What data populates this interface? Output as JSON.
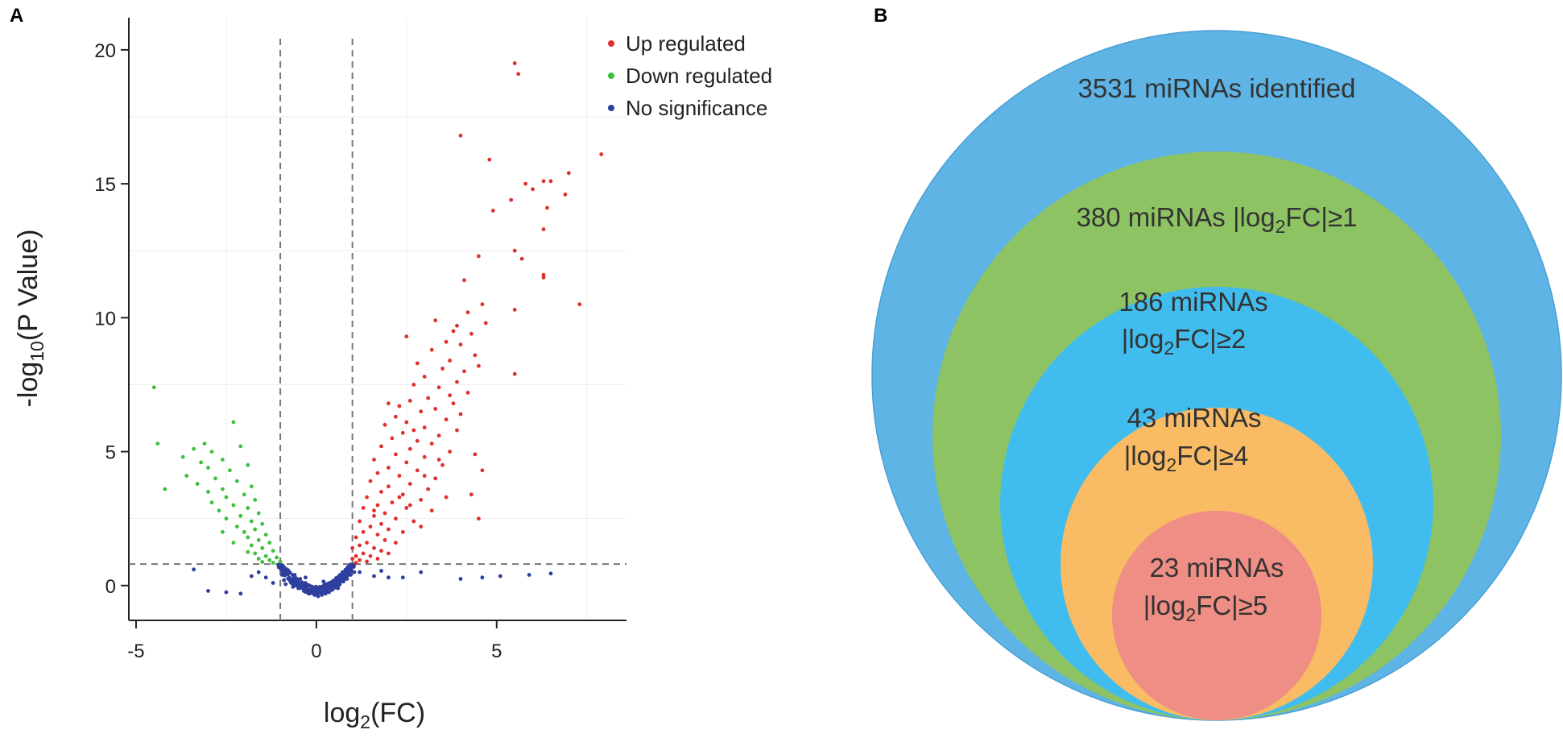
{
  "panel_a": {
    "letter": "A",
    "colors": {
      "up": "#e0302c",
      "down": "#3fbf3f",
      "none": "#2e3f9e",
      "threshold": "#777777"
    }
  },
  "panel_b": {
    "letter": "B",
    "circles": [
      {
        "line1": "3531 miRNAs identified",
        "line2_pre": "",
        "line2_sub": "",
        "line2_post": "",
        "color": "#5db4e5"
      },
      {
        "line1": "380 miRNAs |log",
        "line1_sub": "2",
        "line1_post": "FC|≥1",
        "color": "#8ec364"
      },
      {
        "line1": "186 miRNAs",
        "line2_pre": "|log",
        "line2_sub": "2",
        "line2_post": "FC|≥2",
        "color": "#40bdee"
      },
      {
        "line1": "43 miRNAs",
        "line2_pre": "|log",
        "line2_sub": "2",
        "line2_post": "FC|≥4",
        "color": "#f9bb64"
      },
      {
        "line1": "23 miRNAs",
        "line2_pre": "|log",
        "line2_sub": "2",
        "line2_post": "FC|≥5",
        "color": "#ee8e84"
      }
    ],
    "outline_color": "#4a9fd3"
  },
  "chart_data": {
    "type": "scatter",
    "title": "",
    "xlabel_pre": "log",
    "xlabel_sub": "2",
    "xlabel_post": "(FC)",
    "ylabel_pre": "-log",
    "ylabel_sub": "10",
    "ylabel_post": "(P Value)",
    "xlim": [
      -5.2,
      8.6
    ],
    "ylim": [
      -1.3,
      21.2
    ],
    "xticks": [
      -5,
      0,
      5
    ],
    "yticks": [
      0,
      5,
      10,
      15,
      20
    ],
    "thresholds": {
      "x": [
        -1,
        1
      ],
      "y": 0.8
    },
    "legend": [
      {
        "key": "up",
        "label": "Up regulated"
      },
      {
        "key": "down",
        "label": "Down regulated"
      },
      {
        "key": "none",
        "label": "No significance"
      }
    ],
    "legend_position": "top-right",
    "series": [
      {
        "name": "Up regulated",
        "key": "up",
        "points": [
          [
            5.5,
            19.5
          ],
          [
            5.6,
            19.1
          ],
          [
            4.0,
            16.8
          ],
          [
            7.9,
            16.1
          ],
          [
            4.8,
            15.9
          ],
          [
            7.0,
            15.4
          ],
          [
            6.5,
            15.1
          ],
          [
            6.3,
            15.1
          ],
          [
            5.8,
            15.0
          ],
          [
            6.0,
            14.8
          ],
          [
            6.9,
            14.6
          ],
          [
            5.4,
            14.4
          ],
          [
            6.4,
            14.1
          ],
          [
            4.9,
            14.0
          ],
          [
            6.3,
            13.3
          ],
          [
            5.5,
            12.5
          ],
          [
            4.5,
            12.3
          ],
          [
            5.7,
            12.2
          ],
          [
            6.3,
            11.6
          ],
          [
            6.3,
            11.5
          ],
          [
            4.1,
            11.4
          ],
          [
            7.3,
            10.5
          ],
          [
            4.6,
            10.5
          ],
          [
            5.5,
            10.3
          ],
          [
            4.2,
            10.2
          ],
          [
            3.3,
            9.9
          ],
          [
            4.7,
            9.8
          ],
          [
            3.9,
            9.7
          ],
          [
            3.8,
            9.5
          ],
          [
            4.3,
            9.4
          ],
          [
            2.5,
            9.3
          ],
          [
            3.6,
            9.1
          ],
          [
            4.0,
            9.0
          ],
          [
            3.2,
            8.8
          ],
          [
            4.4,
            8.6
          ],
          [
            3.7,
            8.4
          ],
          [
            2.8,
            8.3
          ],
          [
            3.5,
            8.1
          ],
          [
            5.5,
            7.9
          ],
          [
            4.1,
            8.0
          ],
          [
            3.0,
            7.8
          ],
          [
            3.9,
            7.6
          ],
          [
            2.7,
            7.5
          ],
          [
            3.4,
            7.4
          ],
          [
            4.2,
            7.2
          ],
          [
            3.1,
            7.0
          ],
          [
            2.6,
            6.9
          ],
          [
            3.8,
            6.8
          ],
          [
            2.0,
            6.8
          ],
          [
            2.3,
            6.7
          ],
          [
            3.3,
            6.6
          ],
          [
            2.9,
            6.5
          ],
          [
            4.0,
            6.4
          ],
          [
            2.2,
            6.3
          ],
          [
            3.6,
            6.2
          ],
          [
            2.5,
            6.1
          ],
          [
            1.9,
            6.0
          ],
          [
            3.0,
            5.9
          ],
          [
            3.9,
            5.8
          ],
          [
            2.4,
            5.7
          ],
          [
            3.4,
            5.6
          ],
          [
            2.1,
            5.5
          ],
          [
            2.8,
            5.4
          ],
          [
            3.2,
            5.3
          ],
          [
            1.8,
            5.2
          ],
          [
            2.6,
            5.1
          ],
          [
            3.7,
            5.0
          ],
          [
            2.2,
            4.9
          ],
          [
            4.4,
            4.9
          ],
          [
            3.0,
            4.8
          ],
          [
            1.6,
            4.7
          ],
          [
            2.5,
            4.6
          ],
          [
            3.5,
            4.5
          ],
          [
            2.0,
            4.4
          ],
          [
            2.8,
            4.3
          ],
          [
            4.6,
            4.3
          ],
          [
            1.7,
            4.2
          ],
          [
            2.3,
            4.1
          ],
          [
            3.3,
            4.0
          ],
          [
            1.5,
            3.9
          ],
          [
            2.6,
            3.8
          ],
          [
            2.0,
            3.7
          ],
          [
            3.1,
            3.6
          ],
          [
            1.8,
            3.5
          ],
          [
            2.4,
            3.4
          ],
          [
            4.3,
            3.4
          ],
          [
            1.4,
            3.3
          ],
          [
            2.9,
            3.2
          ],
          [
            2.1,
            3.1
          ],
          [
            1.7,
            3.0
          ],
          [
            2.5,
            2.9
          ],
          [
            1.3,
            2.9
          ],
          [
            3.2,
            2.8
          ],
          [
            1.9,
            2.7
          ],
          [
            1.6,
            2.6
          ],
          [
            2.2,
            2.5
          ],
          [
            4.5,
            2.5
          ],
          [
            1.2,
            2.4
          ],
          [
            2.7,
            2.4
          ],
          [
            1.8,
            2.3
          ],
          [
            1.5,
            2.2
          ],
          [
            2.0,
            2.1
          ],
          [
            1.3,
            2.0
          ],
          [
            2.4,
            2.0
          ],
          [
            1.7,
            1.9
          ],
          [
            1.1,
            1.8
          ],
          [
            1.9,
            1.7
          ],
          [
            1.4,
            1.6
          ],
          [
            2.2,
            1.6
          ],
          [
            1.2,
            1.5
          ],
          [
            1.6,
            1.4
          ],
          [
            1.0,
            1.4
          ],
          [
            1.8,
            1.3
          ],
          [
            1.3,
            1.2
          ],
          [
            1.1,
            1.1
          ],
          [
            1.5,
            1.1
          ],
          [
            1.0,
            1.0
          ],
          [
            1.2,
            0.95
          ],
          [
            1.4,
            0.9
          ],
          [
            1.7,
            1.0
          ],
          [
            1.1,
            0.85
          ],
          [
            2.0,
            1.2
          ],
          [
            2.6,
            3.0
          ],
          [
            3.6,
            3.3
          ],
          [
            2.9,
            2.2
          ],
          [
            1.6,
            2.8
          ],
          [
            2.3,
            3.3
          ],
          [
            3.0,
            4.1
          ],
          [
            3.4,
            4.7
          ],
          [
            2.7,
            5.8
          ],
          [
            3.7,
            7.1
          ],
          [
            4.5,
            8.2
          ]
        ]
      },
      {
        "name": "Down regulated",
        "key": "down",
        "points": [
          [
            -4.5,
            7.4
          ],
          [
            -2.3,
            6.1
          ],
          [
            -4.4,
            5.3
          ],
          [
            -3.1,
            5.3
          ],
          [
            -2.1,
            5.2
          ],
          [
            -3.4,
            5.1
          ],
          [
            -2.9,
            5.0
          ],
          [
            -3.7,
            4.8
          ],
          [
            -2.6,
            4.7
          ],
          [
            -3.2,
            4.6
          ],
          [
            -1.9,
            4.5
          ],
          [
            -3.0,
            4.4
          ],
          [
            -2.4,
            4.3
          ],
          [
            -3.6,
            4.1
          ],
          [
            -2.8,
            4.0
          ],
          [
            -2.2,
            3.9
          ],
          [
            -3.3,
            3.8
          ],
          [
            -1.8,
            3.7
          ],
          [
            -4.2,
            3.6
          ],
          [
            -2.6,
            3.6
          ],
          [
            -3.0,
            3.5
          ],
          [
            -2.0,
            3.4
          ],
          [
            -2.5,
            3.3
          ],
          [
            -1.7,
            3.2
          ],
          [
            -2.9,
            3.1
          ],
          [
            -2.3,
            3.0
          ],
          [
            -1.9,
            2.9
          ],
          [
            -2.7,
            2.8
          ],
          [
            -1.6,
            2.7
          ],
          [
            -2.1,
            2.6
          ],
          [
            -2.5,
            2.5
          ],
          [
            -1.8,
            2.4
          ],
          [
            -1.5,
            2.3
          ],
          [
            -2.2,
            2.2
          ],
          [
            -1.7,
            2.1
          ],
          [
            -2.0,
            2.0
          ],
          [
            -1.4,
            1.9
          ],
          [
            -1.9,
            1.8
          ],
          [
            -1.6,
            1.7
          ],
          [
            -1.3,
            1.6
          ],
          [
            -1.8,
            1.5
          ],
          [
            -1.5,
            1.4
          ],
          [
            -1.2,
            1.3
          ],
          [
            -1.7,
            1.2
          ],
          [
            -1.4,
            1.1
          ],
          [
            -1.1,
            1.05
          ],
          [
            -1.6,
            1.0
          ],
          [
            -1.3,
            0.95
          ],
          [
            -1.0,
            0.9
          ],
          [
            -1.5,
            0.88
          ],
          [
            -1.2,
            0.85
          ],
          [
            -1.9,
            1.25
          ],
          [
            -2.3,
            1.6
          ],
          [
            -2.6,
            2.0
          ]
        ]
      },
      {
        "name": "No significance",
        "key": "none",
        "points": [
          [
            -3.4,
            0.6
          ],
          [
            -3.0,
            -0.2
          ],
          [
            -2.5,
            -0.25
          ],
          [
            -2.1,
            -0.3
          ],
          [
            -1.8,
            0.35
          ],
          [
            -1.6,
            0.5
          ],
          [
            -1.4,
            0.3
          ],
          [
            -1.2,
            0.1
          ],
          [
            -1.0,
            0.65
          ],
          [
            -0.95,
            0.4
          ],
          [
            -0.9,
            0.2
          ],
          [
            -0.85,
            0.05
          ],
          [
            -0.8,
            0.55
          ],
          [
            -0.75,
            0.3
          ],
          [
            -0.7,
            0.1
          ],
          [
            -0.65,
            -0.05
          ],
          [
            -0.6,
            0.4
          ],
          [
            -0.55,
            0.15
          ],
          [
            -0.5,
            -0.1
          ],
          [
            -0.45,
            0.25
          ],
          [
            -0.4,
            0.0
          ],
          [
            -0.35,
            -0.2
          ],
          [
            -0.3,
            0.1
          ],
          [
            -0.25,
            -0.15
          ],
          [
            -0.2,
            -0.3
          ],
          [
            -0.15,
            -0.05
          ],
          [
            -0.1,
            -0.25
          ],
          [
            -0.05,
            -0.35
          ],
          [
            0.0,
            -0.3
          ],
          [
            0.05,
            -0.4
          ],
          [
            0.1,
            -0.25
          ],
          [
            0.15,
            -0.35
          ],
          [
            0.2,
            -0.2
          ],
          [
            0.25,
            -0.3
          ],
          [
            0.3,
            -0.1
          ],
          [
            0.35,
            -0.25
          ],
          [
            0.4,
            0.0
          ],
          [
            0.45,
            -0.15
          ],
          [
            0.5,
            0.1
          ],
          [
            0.55,
            -0.05
          ],
          [
            0.6,
            0.2
          ],
          [
            0.65,
            0.05
          ],
          [
            0.7,
            0.35
          ],
          [
            0.75,
            0.15
          ],
          [
            0.8,
            0.45
          ],
          [
            0.85,
            0.25
          ],
          [
            0.9,
            0.6
          ],
          [
            0.95,
            0.4
          ],
          [
            1.0,
            0.7
          ],
          [
            1.05,
            0.5
          ],
          [
            -0.3,
            0.3
          ],
          [
            0.2,
            0.15
          ],
          [
            -0.6,
            0.0
          ],
          [
            0.6,
            -0.1
          ],
          [
            -0.1,
            -0.1
          ],
          [
            0.1,
            -0.05
          ],
          [
            1.2,
            0.5
          ],
          [
            1.6,
            0.35
          ],
          [
            1.8,
            0.55
          ],
          [
            2.0,
            0.3
          ],
          [
            2.4,
            0.3
          ],
          [
            2.9,
            0.5
          ],
          [
            4.0,
            0.25
          ],
          [
            4.6,
            0.3
          ],
          [
            5.1,
            0.35
          ],
          [
            5.9,
            0.4
          ],
          [
            6.5,
            0.45
          ]
        ]
      }
    ]
  }
}
